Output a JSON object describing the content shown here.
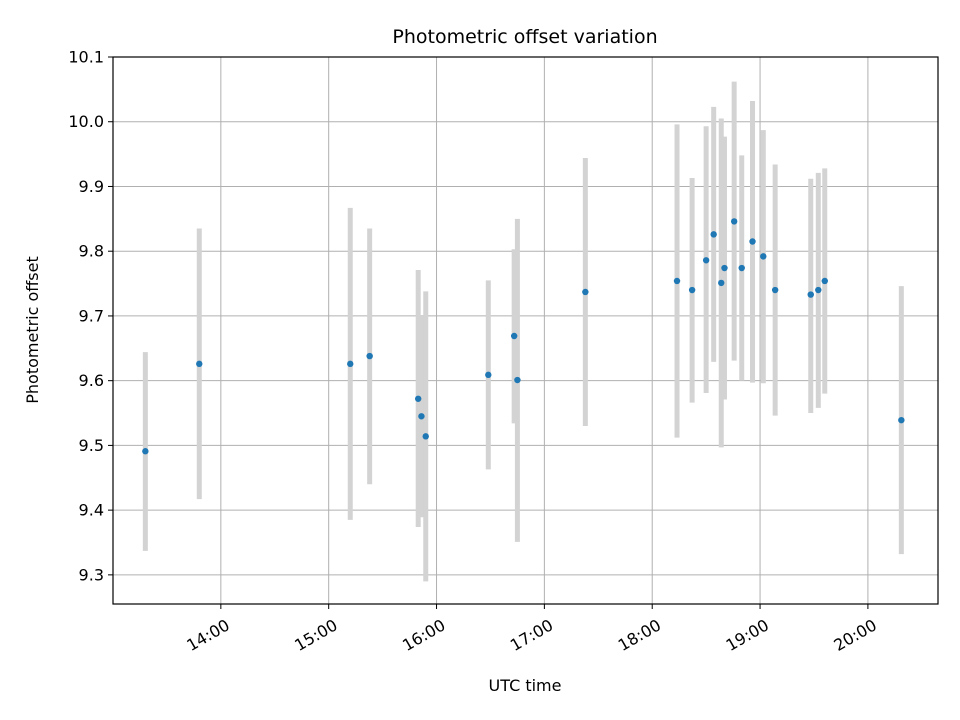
{
  "chart_data": {
    "type": "scatter",
    "title": "Photometric offset variation",
    "xlabel": "UTC time",
    "ylabel": "Photometric offset",
    "xlim_hours": [
      13.0,
      20.65
    ],
    "ylim": [
      9.255,
      10.1
    ],
    "grid": true,
    "x_ticks": [
      {
        "value": 14,
        "label": "14:00"
      },
      {
        "value": 15,
        "label": "15:00"
      },
      {
        "value": 16,
        "label": "16:00"
      },
      {
        "value": 17,
        "label": "17:00"
      },
      {
        "value": 18,
        "label": "18:00"
      },
      {
        "value": 19,
        "label": "19:00"
      },
      {
        "value": 20,
        "label": "20:00"
      }
    ],
    "y_ticks": [
      {
        "value": 9.3,
        "label": "9.3"
      },
      {
        "value": 9.4,
        "label": "9.4"
      },
      {
        "value": 9.5,
        "label": "9.5"
      },
      {
        "value": 9.6,
        "label": "9.6"
      },
      {
        "value": 9.7,
        "label": "9.7"
      },
      {
        "value": 9.8,
        "label": "9.8"
      },
      {
        "value": 9.9,
        "label": "9.9"
      },
      {
        "value": 10.0,
        "label": "10.0"
      },
      {
        "value": 10.1,
        "label": "10.1"
      }
    ],
    "marker_color": "#1f77b4",
    "errorbar_color": "#d3d3d3",
    "points": [
      {
        "t": 13.3,
        "y": 9.491,
        "lo": 9.337,
        "hi": 9.644
      },
      {
        "t": 13.8,
        "y": 9.626,
        "lo": 9.417,
        "hi": 9.835
      },
      {
        "t": 15.2,
        "y": 9.626,
        "lo": 9.385,
        "hi": 9.867
      },
      {
        "t": 15.38,
        "y": 9.638,
        "lo": 9.44,
        "hi": 9.835
      },
      {
        "t": 15.83,
        "y": 9.572,
        "lo": 9.374,
        "hi": 9.771
      },
      {
        "t": 15.86,
        "y": 9.545,
        "lo": 9.389,
        "hi": 9.7
      },
      {
        "t": 15.9,
        "y": 9.514,
        "lo": 9.29,
        "hi": 9.738
      },
      {
        "t": 16.48,
        "y": 9.609,
        "lo": 9.463,
        "hi": 9.755
      },
      {
        "t": 16.72,
        "y": 9.669,
        "lo": 9.534,
        "hi": 9.803
      },
      {
        "t": 16.75,
        "y": 9.601,
        "lo": 9.351,
        "hi": 9.85
      },
      {
        "t": 17.38,
        "y": 9.737,
        "lo": 9.53,
        "hi": 9.944
      },
      {
        "t": 18.23,
        "y": 9.754,
        "lo": 9.512,
        "hi": 9.996
      },
      {
        "t": 18.37,
        "y": 9.74,
        "lo": 9.566,
        "hi": 9.913
      },
      {
        "t": 18.5,
        "y": 9.786,
        "lo": 9.581,
        "hi": 9.993
      },
      {
        "t": 18.57,
        "y": 9.826,
        "lo": 9.629,
        "hi": 10.023
      },
      {
        "t": 18.64,
        "y": 9.751,
        "lo": 9.497,
        "hi": 10.005
      },
      {
        "t": 18.67,
        "y": 9.774,
        "lo": 9.571,
        "hi": 9.977
      },
      {
        "t": 18.76,
        "y": 9.846,
        "lo": 9.631,
        "hi": 10.062
      },
      {
        "t": 18.83,
        "y": 9.774,
        "lo": 9.6,
        "hi": 9.948
      },
      {
        "t": 18.93,
        "y": 9.815,
        "lo": 9.597,
        "hi": 10.032
      },
      {
        "t": 19.03,
        "y": 9.792,
        "lo": 9.596,
        "hi": 9.987
      },
      {
        "t": 19.14,
        "y": 9.74,
        "lo": 9.546,
        "hi": 9.934
      },
      {
        "t": 19.47,
        "y": 9.733,
        "lo": 9.55,
        "hi": 9.912
      },
      {
        "t": 19.54,
        "y": 9.74,
        "lo": 9.558,
        "hi": 9.921
      },
      {
        "t": 19.6,
        "y": 9.754,
        "lo": 9.58,
        "hi": 9.928
      },
      {
        "t": 20.31,
        "y": 9.539,
        "lo": 9.332,
        "hi": 9.746
      }
    ]
  }
}
